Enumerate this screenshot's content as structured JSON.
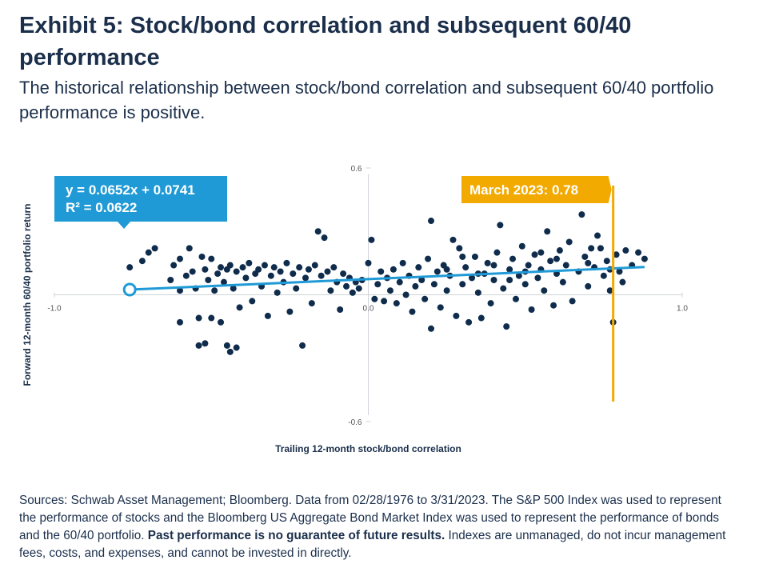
{
  "chart_data": {
    "type": "scatter",
    "title": "Exhibit 5: Stock/bond correlation and subsequent 60/40 performance",
    "subtitle": "The historical relationship between stock/bond correlation and subsequent 60/40 portfolio performance is positive.",
    "x_label": "Trailing 12-month stock/bond correlation",
    "y_label": "Forward 12-month 60/40 portfolio return",
    "color": "#0f2c4c",
    "xlim": [
      -1.0,
      1.0
    ],
    "ylim": [
      -0.6,
      0.6
    ],
    "xticks": [
      {
        "value": -1.0,
        "label": "-1.0"
      },
      {
        "value": 0,
        "label": "0.0"
      },
      {
        "value": 1.0,
        "label": "1.0"
      }
    ],
    "yticks": [
      {
        "value": -0.6,
        "label": "-0.6"
      },
      {
        "value": 0.6,
        "label": "0.6"
      }
    ],
    "x": [
      -0.76,
      -0.72,
      -0.7,
      -0.68,
      -0.63,
      -0.62,
      -0.6,
      -0.6,
      -0.58,
      -0.57,
      -0.56,
      -0.55,
      -0.54,
      -0.53,
      -0.52,
      -0.51,
      -0.5,
      -0.49,
      -0.48,
      -0.47,
      -0.54,
      -0.52,
      -0.5,
      -0.47,
      -0.45,
      -0.44,
      -0.42,
      -0.6,
      -0.46,
      -0.45,
      -0.44,
      -0.43,
      -0.42,
      -0.41,
      -0.4,
      -0.39,
      -0.38,
      -0.37,
      -0.36,
      -0.35,
      -0.34,
      -0.33,
      -0.32,
      -0.31,
      -0.3,
      -0.29,
      -0.28,
      -0.27,
      -0.26,
      -0.25,
      -0.24,
      -0.23,
      -0.22,
      -0.21,
      -0.2,
      -0.19,
      -0.18,
      -0.17,
      -0.16,
      -0.14,
      -0.15,
      -0.13,
      -0.12,
      -0.11,
      -0.1,
      -0.09,
      -0.08,
      -0.07,
      -0.06,
      -0.05,
      -0.04,
      -0.03,
      -0.02,
      0.01,
      0.0,
      0.02,
      0.03,
      0.04,
      0.05,
      0.06,
      0.07,
      0.08,
      0.09,
      0.1,
      0.11,
      0.12,
      0.13,
      0.14,
      0.15,
      0.16,
      0.17,
      0.18,
      0.19,
      0.2,
      0.2,
      0.21,
      0.22,
      0.23,
      0.24,
      0.25,
      0.26,
      0.27,
      0.28,
      0.29,
      0.3,
      0.31,
      0.32,
      0.33,
      0.34,
      0.35,
      0.36,
      0.37,
      0.38,
      0.39,
      0.4,
      0.41,
      0.42,
      0.43,
      0.44,
      0.45,
      0.46,
      0.47,
      0.48,
      0.49,
      0.5,
      0.51,
      0.52,
      0.53,
      0.54,
      0.55,
      0.56,
      0.57,
      0.58,
      0.59,
      0.6,
      0.61,
      0.62,
      0.63,
      0.64,
      0.65,
      0.66,
      0.67,
      0.68,
      0.69,
      0.7,
      0.71,
      0.72,
      0.73,
      0.74,
      0.75,
      0.76,
      0.77,
      0.78,
      0.79,
      0.8,
      0.81,
      0.82,
      0.84,
      0.86,
      0.88,
      0.6,
      0.55,
      0.5,
      0.45,
      0.4,
      0.35,
      0.3,
      0.25,
      0.7,
      0.77
    ],
    "values": [
      0.13,
      0.16,
      0.2,
      0.22,
      0.07,
      0.14,
      0.02,
      0.17,
      0.09,
      0.22,
      0.11,
      0.03,
      -0.11,
      0.18,
      0.12,
      0.07,
      0.17,
      0.02,
      0.1,
      0.13,
      -0.24,
      -0.23,
      -0.11,
      -0.13,
      -0.24,
      -0.27,
      -0.25,
      -0.13,
      0.06,
      0.12,
      0.14,
      0.03,
      0.11,
      -0.06,
      0.13,
      0.08,
      0.15,
      -0.03,
      0.1,
      0.12,
      0.04,
      0.14,
      -0.1,
      0.09,
      0.13,
      0.01,
      0.11,
      0.06,
      0.15,
      -0.08,
      0.1,
      0.03,
      0.13,
      -0.24,
      0.08,
      0.12,
      -0.04,
      0.14,
      0.3,
      0.27,
      0.09,
      0.11,
      0.02,
      0.13,
      0.06,
      -0.07,
      0.1,
      0.04,
      0.08,
      0.01,
      0.06,
      0.03,
      0.07,
      0.26,
      0.15,
      -0.02,
      0.05,
      0.11,
      -0.03,
      0.08,
      0.02,
      0.12,
      -0.04,
      0.06,
      0.15,
      0.0,
      0.09,
      -0.08,
      0.04,
      0.13,
      0.07,
      -0.02,
      0.17,
      0.35,
      -0.16,
      0.05,
      0.11,
      -0.06,
      0.14,
      0.02,
      0.09,
      0.26,
      -0.1,
      0.22,
      0.05,
      0.13,
      -0.13,
      0.08,
      0.18,
      0.01,
      -0.11,
      0.1,
      0.15,
      -0.04,
      0.07,
      0.2,
      0.33,
      0.03,
      -0.15,
      0.12,
      0.17,
      -0.02,
      0.09,
      0.23,
      0.05,
      0.14,
      -0.07,
      0.19,
      0.08,
      0.12,
      0.02,
      0.3,
      0.16,
      -0.05,
      0.1,
      0.21,
      0.06,
      0.14,
      0.25,
      -0.03,
      0.45,
      0.11,
      0.38,
      0.18,
      0.04,
      0.22,
      0.13,
      0.28,
      0.22,
      0.09,
      0.16,
      0.02,
      -0.13,
      0.19,
      0.11,
      0.06,
      0.21,
      0.14,
      0.2,
      0.17,
      0.17,
      0.2,
      0.11,
      0.07,
      0.14,
      0.1,
      0.18,
      0.12,
      0.15,
      0.12
    ],
    "trendline": {
      "color": "#1f9ad6",
      "x": [
        -0.76,
        0.88
      ],
      "values": [
        0.0245,
        0.1315
      ],
      "label": [
        "y = 0.0652x + 0.0741",
        "R² = 0.0622"
      ]
    },
    "marker": {
      "x": 0.78,
      "label": "March 2023: 0.78",
      "color": "#f2a900"
    }
  },
  "footnote": {
    "text": "Sources: Schwab Asset Management; Bloomberg. Data from 02/28/1976 to 3/31/2023. The S&P 500 Index was used to represent the performance of stocks and the Bloomberg US Aggregate Bond Market Index was used to represent the performance of bonds and the 60/40 portfolio.",
    "bold": "Past performance is no guarantee of future results.",
    "text2": "Indexes are unmanaged, do not incur management fees, costs, and expenses, and cannot be invested in directly."
  }
}
